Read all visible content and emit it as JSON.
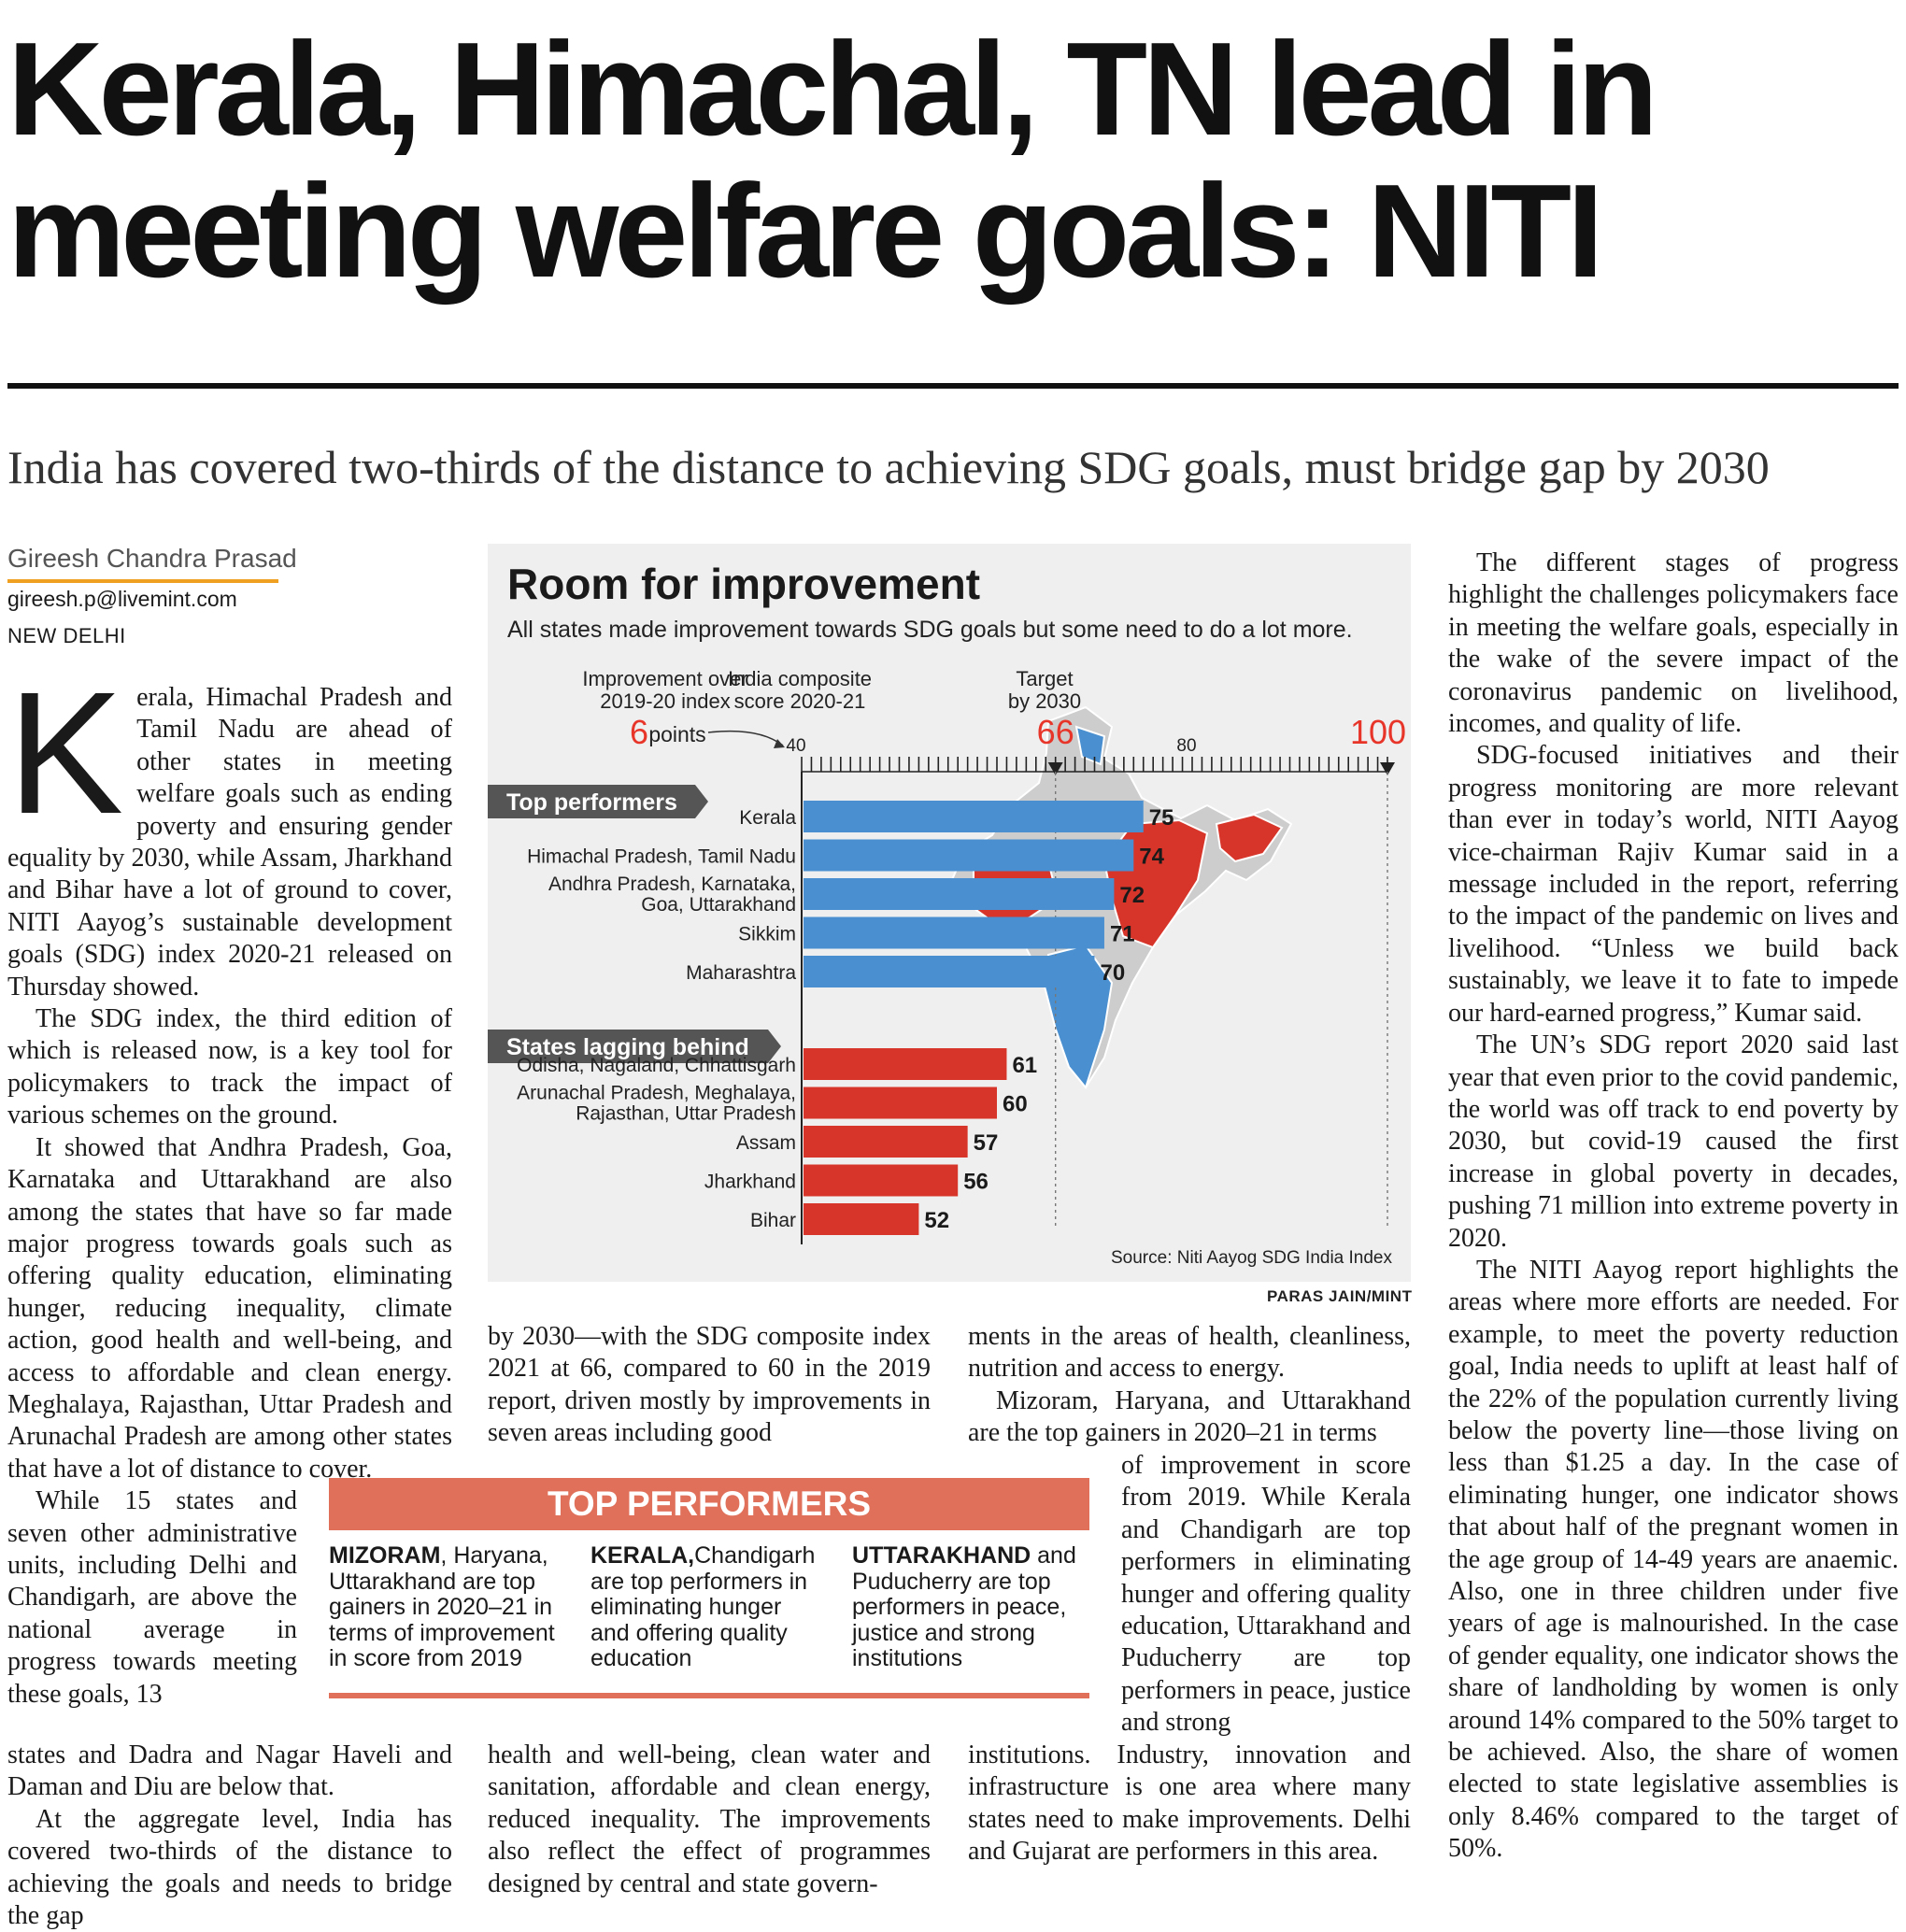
{
  "headline": {
    "line1": "Kerala, Himachal, TN lead in",
    "line2": "meeting welfare goals: NITI"
  },
  "subhead": "India has covered two-thirds of the distance to achieving SDG goals, must bridge gap by 2030",
  "byline": {
    "author": "Gireesh Chandra Prasad",
    "email": "gireesh.p@livemint.com",
    "dateline": "NEW DELHI"
  },
  "body": {
    "dropcap": "K",
    "col1": [
      "erala, Himachal Pradesh and Tamil Nadu are ahead of other states in meeting welfare goals such as ending poverty and ensuring gender equality by 2030, while Assam, Jharkhand and Bihar have a lot of ground to cover, NITI Aayog’s sustainable development goals (SDG) index 2020-21 released on Thursday showed.",
      "The SDG index, the third edition of which is released now, is a key tool for policymakers to track the impact of various schemes on the ground.",
      "It showed that Andhra Pradesh, Goa, Karnataka and Uttarakhand are also among the states that have so far made major progress towards goals such as offering quality education, eliminating hunger, reducing inequality, climate action, good health and well-being, and access to affordable and clean energy. Meghalaya, Rajasthan, Uttar Pradesh and Arunachal Pradesh are among other states that have a lot of distance to cover.",
      "While 15 states and seven other administrative units, including Delhi and Chandigarh, are above the national average in progress towards meeting these goals, 13"
    ],
    "col1b": [
      "states and Dadra and Nagar Haveli and Daman and Diu are below that.",
      "At the aggregate level, India has covered two-thirds of the distance to achieving the goals and needs to bridge the gap"
    ],
    "col2": "by 2030—with the SDG composite index 2021 at 66, compared to 60 in the 2019 report, driven mostly by improvements in seven areas including good",
    "col2b": "health and well-being, clean water and sanitation, affordable and clean energy, reduced inequality. The improvements also reflect the effect of programmes designed by central and state govern-",
    "col3": [
      "ments in the areas of health, cleanliness, nutrition and access to energy.",
      "Mizoram, Haryana, and Uttarakhand are the top gainers in 2020–21 in terms"
    ],
    "col3mid": "of improvement in score from 2019. While Kerala and Chandigarh are top performers in eliminating hunger and offering quality education, Uttarakhand and Puducherry are top performers in peace, justice and strong",
    "col3b": "institutions. Industry, innovation and infrastructure is one area where many states need to make improvements. Delhi and Gujarat are performers in this area.",
    "col4": [
      "The different stages of progress highlight the challenges policymakers face in meeting the welfare goals, especially in the wake of the severe impact of the coronavirus pandemic on livelihood, incomes, and quality of life.",
      "SDG-focused initiatives and their progress monitoring are more relevant than ever in today’s world, NITI Aayog vice-chairman Rajiv Kumar said in a message included in the report, referring to the impact of the pandemic on lives and livelihood. “Unless we build back sustainably, we leave it to fate to impede our hard-earned progress,” Kumar said.",
      "The UN’s SDG report 2020 said last year that even prior to the covid pandemic, the world was off track to end poverty by 2030, but covid-19 caused the first increase in global poverty in decades, pushing 71 million into extreme poverty in 2020.",
      "The NITI Aayog report highlights the areas where more efforts are needed. For example, to meet the poverty reduction goal, India needs to uplift at least half of the 22% of the population currently living below the poverty line—those living on less than $1.25 a day. In the case of eliminating hunger, one indicator shows that about half of the pregnant women in the age group of 14-49 years are anaemic. Also, one in three children under five years of age is malnourished. In the case of gender equality, one indicator shows the share of landholding by women is only around 14% compared to the 50% target to be achieved. Also, the share of women elected to state legislative assemblies is only 8.46% compared to the target of 50%."
    ]
  },
  "box": {
    "header": "TOP PERFORMERS",
    "items": [
      {
        "lead": "MIZORAM",
        "text": ", Haryana, Uttarakhand are top gainers in 2020–21 in terms of improvement in score from 2019"
      },
      {
        "lead": "KERALA,",
        "text": "Chandigarh are top performers in eliminating hunger and offering quality education"
      },
      {
        "lead": "UTTARAKHAND",
        "text": " and Puducherry are top performers in peace, justice and strong institutions"
      }
    ]
  },
  "chart": {
    "title": "Room for improvement",
    "subtitle": "All states made improvement towards SDG goals but some need to do a lot more.",
    "credit": "PARAS JAIN/MINT",
    "source": "Source: Niti Aayog SDG India Index",
    "ann_improve_label": [
      "Improvement over",
      "2019-20 index"
    ],
    "ann_improve_value": "6",
    "ann_improve_unit": "points",
    "ann_composite_label": [
      "India composite",
      "score 2020-21"
    ],
    "ann_composite_value": "66",
    "ann_target_label": [
      "Target",
      "by 2030"
    ],
    "ann_target_value": "100",
    "colors": {
      "top": "#4a90d0",
      "lag": "#d8352a",
      "accent": "#e8352a",
      "panel": "#efefef"
    }
  },
  "chart_data": {
    "type": "bar",
    "orientation": "horizontal",
    "title": "Room for improvement",
    "subtitle": "All states made improvement towards SDG goals but some need to do a lot more.",
    "axis": {
      "ticks": [
        40,
        80
      ],
      "min": 40,
      "max": 100
    },
    "markers": {
      "india_composite": 66,
      "target": 100
    },
    "groups": [
      {
        "name": "Top performers",
        "color": "#4a90d0",
        "categories": [
          "Kerala",
          "Himachal Pradesh, Tamil Nadu",
          "Andhra Pradesh, Karnataka, Goa, Uttarakhand",
          "Sikkim",
          "Maharashtra"
        ],
        "labels": [
          [
            "Kerala"
          ],
          [
            "Himachal Pradesh, Tamil Nadu"
          ],
          [
            "Andhra Pradesh, Karnataka,",
            "Goa, Uttarakhand"
          ],
          [
            "Sikkim"
          ],
          [
            "Maharashtra"
          ]
        ],
        "values": [
          75,
          74,
          72,
          71,
          70
        ]
      },
      {
        "name": "States lagging behind",
        "color": "#d8352a",
        "categories": [
          "Odisha, Nagaland, Chhattisgarh",
          "Arunachal Pradesh, Meghalaya, Rajasthan, Uttar Pradesh",
          "Assam",
          "Jharkhand",
          "Bihar"
        ],
        "labels": [
          [
            "Odisha, Nagaland, Chhattisgarh"
          ],
          [
            "Arunachal Pradesh, Meghalaya,",
            "Rajasthan, Uttar Pradesh"
          ],
          [
            "Assam"
          ],
          [
            "Jharkhand"
          ],
          [
            "Bihar"
          ]
        ],
        "values": [
          61,
          60,
          57,
          56,
          52
        ]
      }
    ]
  }
}
